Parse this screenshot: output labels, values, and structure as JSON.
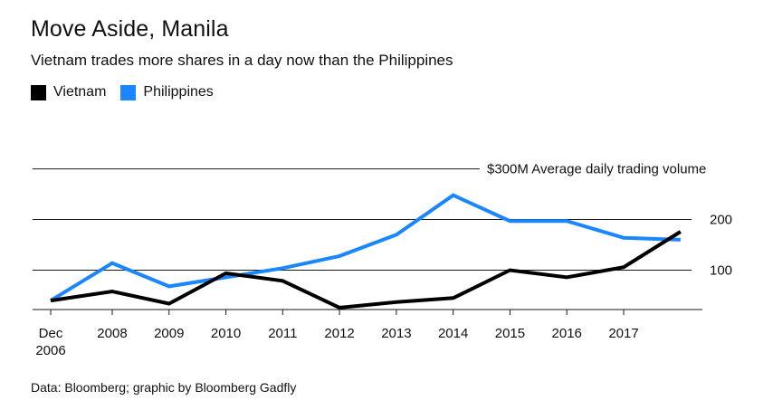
{
  "title": "Move Aside, Manila",
  "subtitle": "Vietnam trades more shares in a day now than the Philippines",
  "source": "Data: Bloomberg; graphic by Bloomberg Gadfly",
  "chart_data": {
    "type": "line",
    "title": "Move Aside, Manila",
    "subtitle": "Vietnam trades more shares in a day now than the Philippines",
    "ylabel": "$300M Average daily trading volume",
    "ylim": [
      0,
      300
    ],
    "yticks": [
      {
        "value": 300,
        "label": "$300M Average daily trading volume"
      },
      {
        "value": 200,
        "label": "200"
      },
      {
        "value": 100,
        "label": "100"
      }
    ],
    "x_tick_labels": [
      {
        "x": 2006.917,
        "label": "Dec",
        "label2": "2006"
      },
      {
        "x": 2008,
        "label": "2008"
      },
      {
        "x": 2009,
        "label": "2009"
      },
      {
        "x": 2010,
        "label": "2010"
      },
      {
        "x": 2011,
        "label": "2011"
      },
      {
        "x": 2012,
        "label": "2012"
      },
      {
        "x": 2013,
        "label": "2013"
      },
      {
        "x": 2014,
        "label": "2014"
      },
      {
        "x": 2015,
        "label": "2015"
      },
      {
        "x": 2016,
        "label": "2016"
      },
      {
        "x": 2017,
        "label": "2017"
      }
    ],
    "xlim": [
      2006.917,
      2018.5
    ],
    "grid": true,
    "legend_position": "top-left",
    "series": [
      {
        "name": "Vietnam",
        "color": "#000000",
        "x": [
          2006.917,
          2008,
          2009,
          2010,
          2011,
          2012,
          2013,
          2014,
          2015,
          2016,
          2017,
          2018
        ],
        "y": [
          40,
          58,
          34,
          94,
          79,
          26,
          37,
          45,
          100,
          86,
          106,
          176
        ]
      },
      {
        "name": "Philippines",
        "color": "#1a86ff",
        "x": [
          2006.917,
          2008,
          2009,
          2010,
          2011,
          2012,
          2013,
          2014,
          2015,
          2016,
          2017,
          2018
        ],
        "y": [
          40,
          114,
          68,
          86,
          104,
          128,
          170,
          248,
          197,
          197,
          164,
          160
        ]
      }
    ]
  }
}
